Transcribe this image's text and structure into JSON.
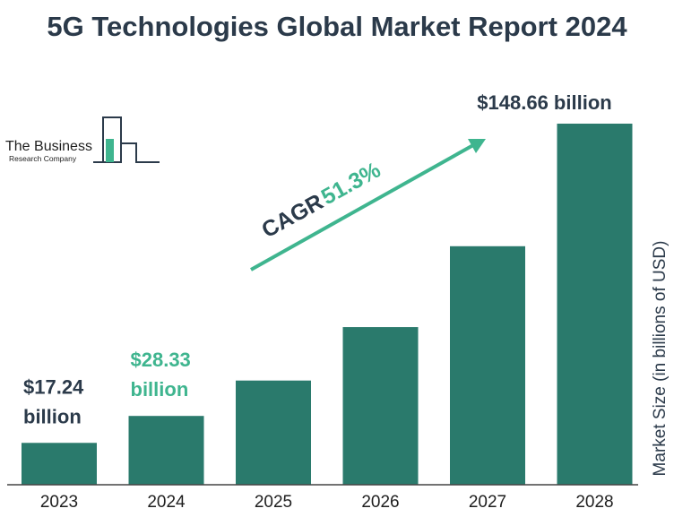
{
  "colors": {
    "bar": "#2a7a6c",
    "accent": "#3fb58f",
    "dark_text": "#2b3a4a",
    "axis": "#444444"
  },
  "logo": {
    "line1": "The Business",
    "line2": "Research Company",
    "icon": "bar-chart-logo-icon"
  },
  "cagr": {
    "label": "CAGR",
    "value": "51.3%"
  },
  "chart_data": {
    "type": "bar",
    "title": "5G Technologies Global Market Report 2024",
    "ylabel": "Market Size (in billions of USD)",
    "categories": [
      "2023",
      "2024",
      "2025",
      "2026",
      "2027",
      "2028"
    ],
    "values": [
      17.24,
      28.33,
      42.9,
      64.9,
      98.2,
      148.66
    ],
    "data_labels": [
      {
        "index": 0,
        "lines": [
          "$17.24",
          "billion"
        ],
        "color": "dark"
      },
      {
        "index": 1,
        "lines": [
          "$28.33",
          "billion"
        ],
        "color": "accent"
      },
      {
        "index": 5,
        "lines": [
          "$148.66 billion"
        ],
        "color": "dark"
      }
    ],
    "ylim": [
      0,
      155
    ],
    "grid": false,
    "legend": "none"
  }
}
